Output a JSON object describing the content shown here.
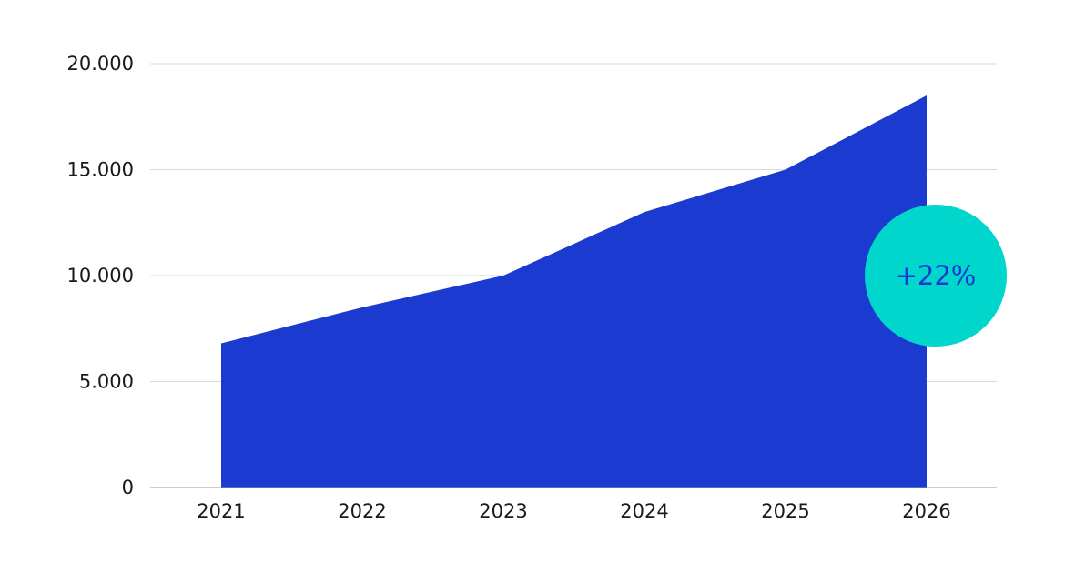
{
  "chart_data": {
    "type": "area",
    "x": [
      "2021",
      "2022",
      "2023",
      "2024",
      "2025",
      "2026"
    ],
    "series": [
      {
        "values": [
          6800,
          8500,
          10000,
          13000,
          15000,
          18500
        ]
      }
    ],
    "ylim": [
      0,
      20000
    ],
    "yticks": [
      0,
      5000,
      10000,
      15000,
      20000
    ],
    "ytick_labels": [
      "0",
      "5.000",
      "10.000",
      "15.000",
      "20.000"
    ],
    "title": "",
    "xlabel": "",
    "ylabel": "",
    "grid": true,
    "annotation": {
      "text": "+22%",
      "at_x": "2026",
      "at_y": 10000
    },
    "colors": {
      "area": "#1a3ad0",
      "grid": "#d9d9d9",
      "axis": "#9a9a9a",
      "badge_fill": "#00d6cc",
      "badge_text": "#1a3ad0"
    }
  }
}
